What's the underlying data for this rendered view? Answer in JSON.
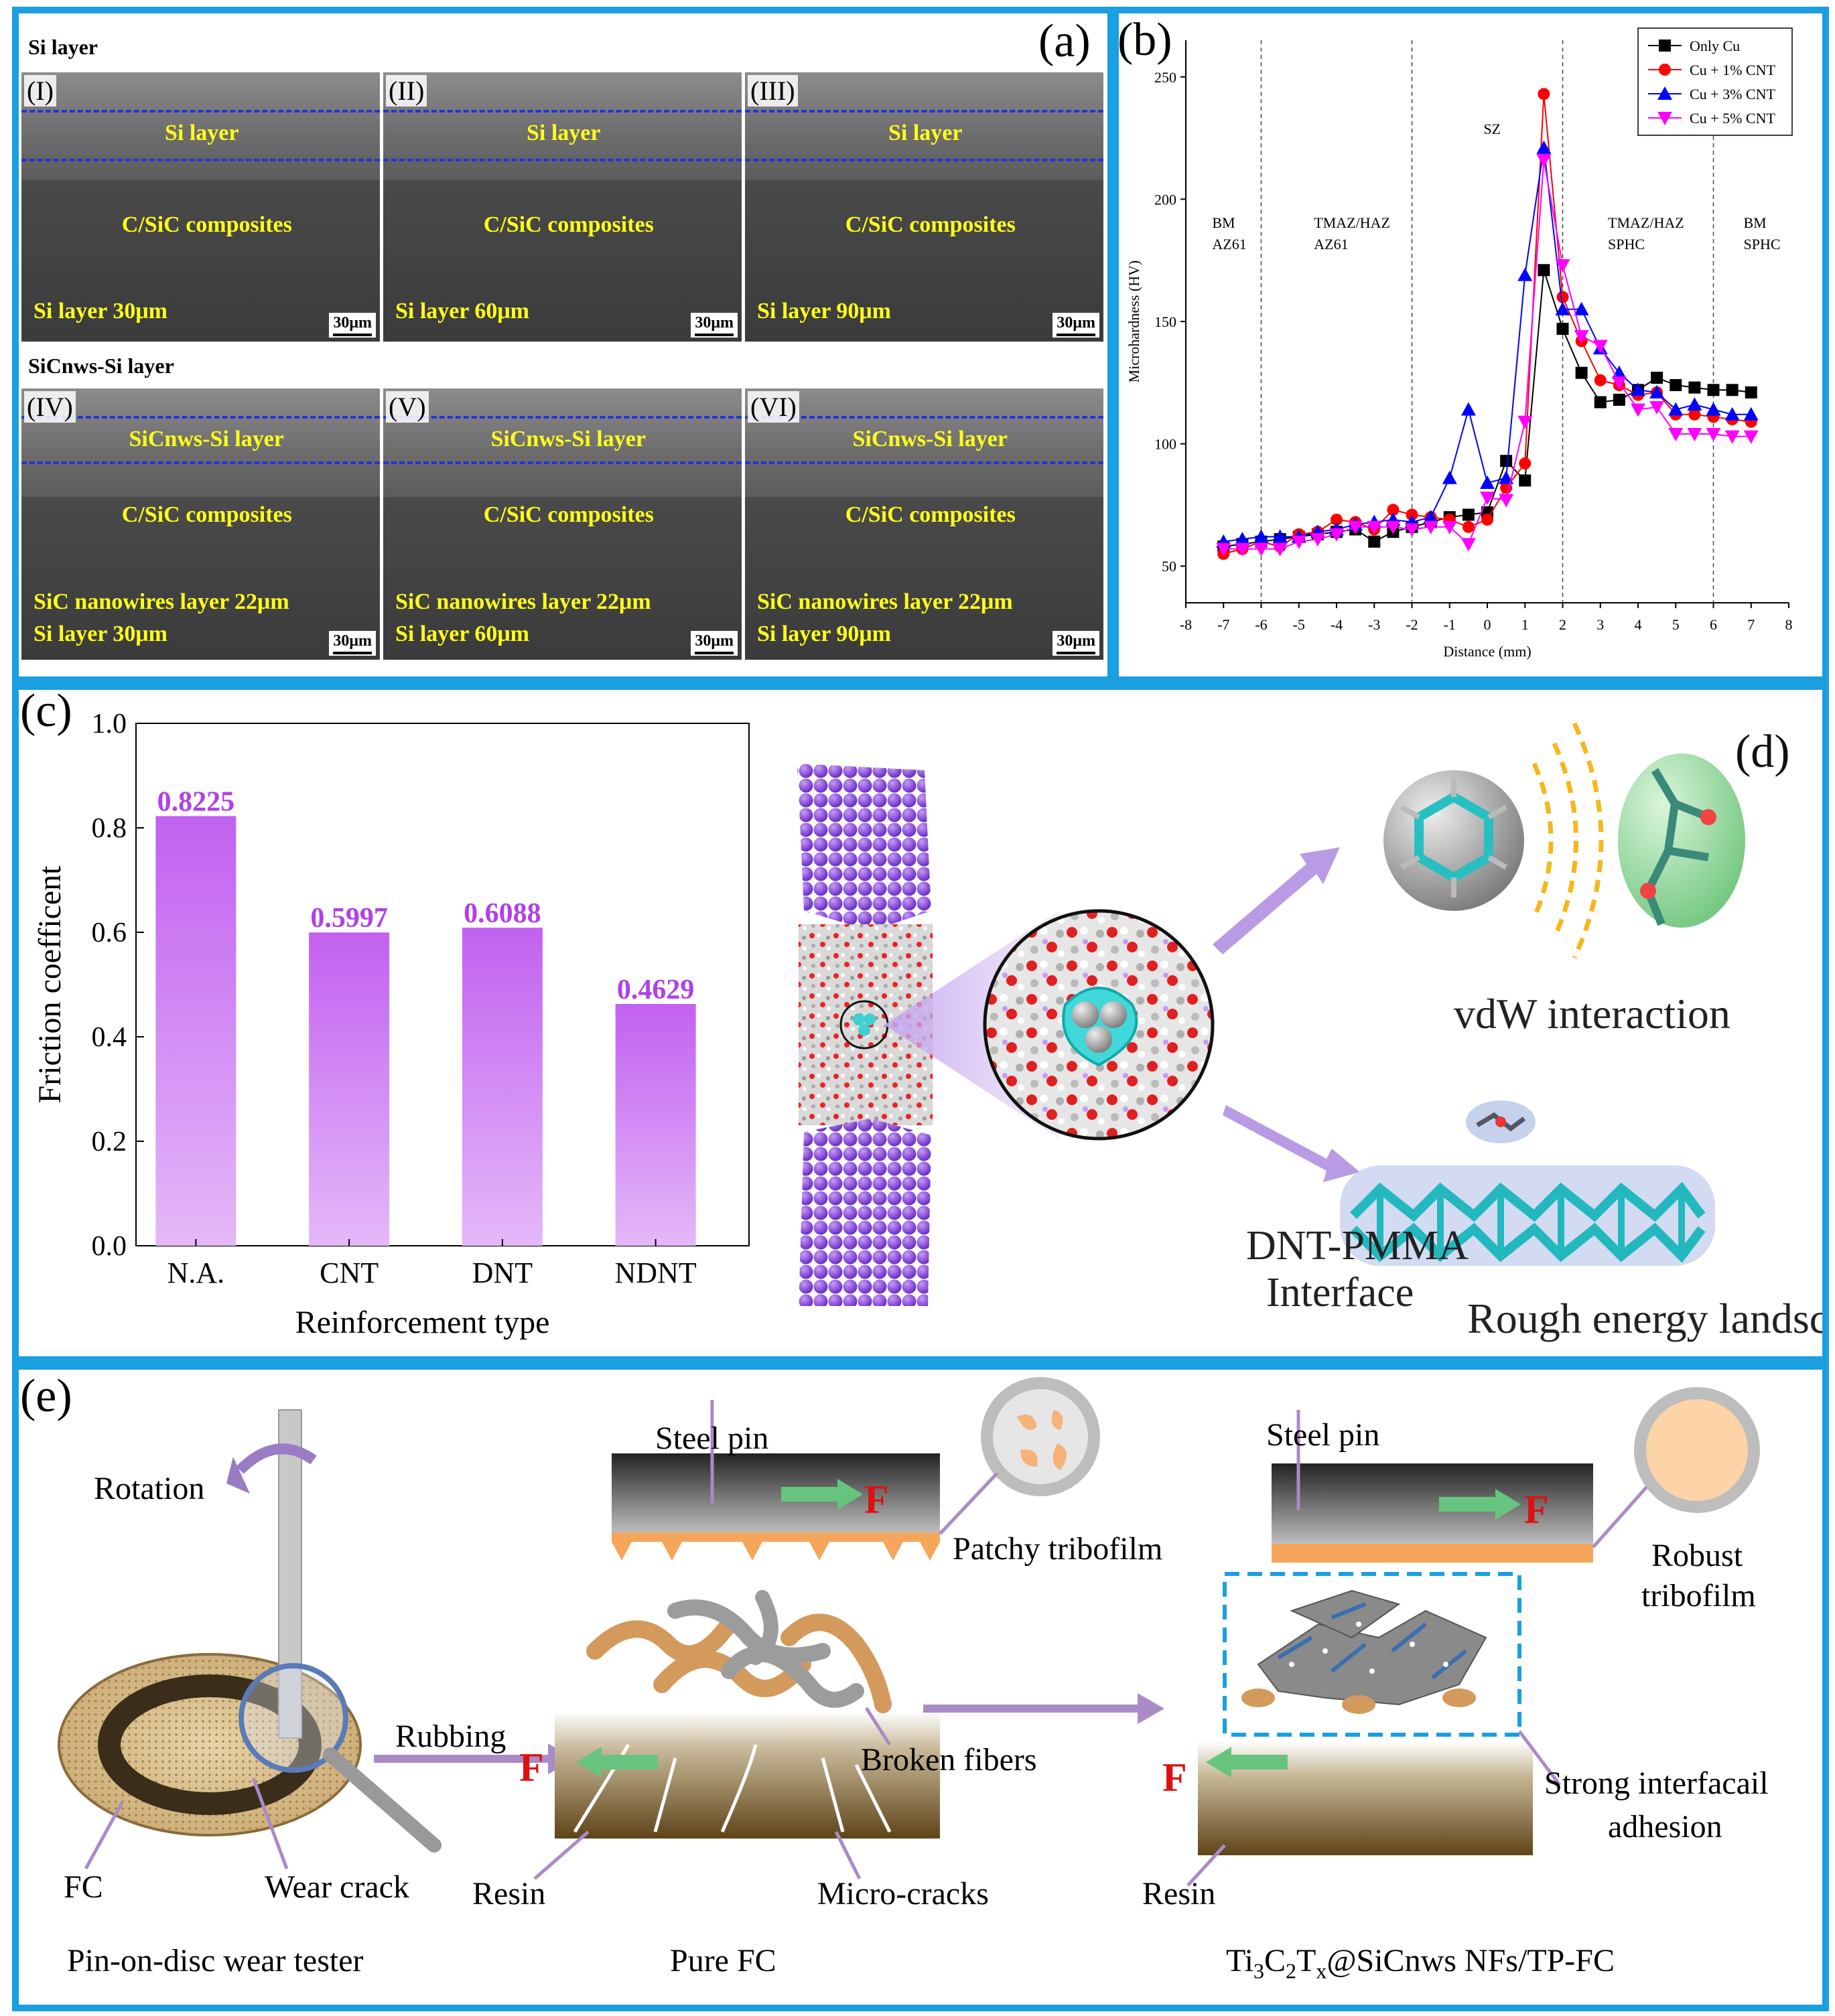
{
  "panel_a": {
    "tag": "(a)",
    "row1_header": "Si layer",
    "row2_header": "SiCnws-Si layer",
    "scale": "30μm",
    "images": [
      {
        "roman": "(I)",
        "layer": "Si layer",
        "composite": "C/SiC composites",
        "caption1": "Si layer 30μm",
        "caption2": ""
      },
      {
        "roman": "(II)",
        "layer": "Si  layer",
        "composite": "C/SiC composites",
        "caption1": "Si layer 60μm",
        "caption2": ""
      },
      {
        "roman": "(III)",
        "layer": "Si  layer",
        "composite": "C/SiC composites",
        "caption1": "Si layer 90μm",
        "caption2": ""
      },
      {
        "roman": "(IV)",
        "layer": "SiCnws-Si  layer",
        "composite": "C/SiC composites",
        "caption1": "SiC nanowires layer 22μm",
        "caption2": "Si layer 30μm"
      },
      {
        "roman": "(V)",
        "layer": "SiCnws-Si  layer",
        "composite": "C/SiC composites",
        "caption1": "SiC nanowires layer 22μm",
        "caption2": "Si layer 60μm"
      },
      {
        "roman": "(VI)",
        "layer": "SiCnws-Si  layer",
        "composite": "C/SiC composites",
        "caption1": "SiC nanowires layer 22μm",
        "caption2": "Si layer 90μm"
      }
    ]
  },
  "panel_b": {
    "tag": "(b)",
    "region_labels": [
      {
        "l1": "BM",
        "l2": "AZ61"
      },
      {
        "l1": "TMAZ/HAZ",
        "l2": "AZ61"
      },
      {
        "l1": "SZ",
        "l2": ""
      },
      {
        "l1": "TMAZ/HAZ",
        "l2": "SPHC"
      },
      {
        "l1": "BM",
        "l2": "SPHC"
      }
    ]
  },
  "panel_c_tag": "(c)",
  "panel_d": {
    "tag": "(d)",
    "interface_l1": "DNT-PMMA",
    "interface_l2": "Interface",
    "vdw": "vdW interaction",
    "rough": "Rough energy landscape"
  },
  "panel_e": {
    "tag": "(e)",
    "rotation": "Rotation",
    "fc": "FC",
    "wear_crack": "Wear crack",
    "rubbing": "Rubbing",
    "steel_pin_1": "Steel pin",
    "patchy": "Patchy tribofilm",
    "force": "F",
    "broken_fibers": "Broken fibers",
    "resin_1": "Resin",
    "micro_cracks": "Micro-cracks",
    "steel_pin_2": "Steel pin",
    "robust_l1": "Robust",
    "robust_l2": "tribofilm",
    "strong_l1": "Strong interfacail",
    "strong_l2": "adhesion",
    "resin_2": "Resin",
    "caption_1": "Pin-on-disc wear tester",
    "caption_2": "Pure FC",
    "caption_3_a": "Ti",
    "caption_3_s1": "3",
    "caption_3_b": "C",
    "caption_3_s2": "2",
    "caption_3_c": "T",
    "caption_3_s3": "x",
    "caption_3_d": "@SiCnws NFs/TP-FC"
  },
  "colors": {
    "frame": "#1a9fe0",
    "bar": "#cc77ee",
    "bar_label": "#b040e8",
    "arrow": "#a98bc6",
    "copper": "#f5a65a"
  },
  "chart_data": [
    {
      "type": "line",
      "panel": "(b)",
      "xlabel": "Distance (mm)",
      "ylabel": "Microhardness (HV)",
      "xlim": [
        -8,
        8
      ],
      "ylim": [
        35,
        265
      ],
      "xticks": [
        -8,
        -7,
        -6,
        -5,
        -4,
        -3,
        -2,
        -1,
        0,
        1,
        2,
        3,
        4,
        5,
        6,
        7,
        8
      ],
      "yticks": [
        50,
        100,
        150,
        200,
        250
      ],
      "vlines": [
        -6,
        -2,
        2,
        6
      ],
      "legend_position": "top-right",
      "x": [
        -7,
        -6.5,
        -6,
        -5.5,
        -5,
        -4.5,
        -4,
        -3.5,
        -3,
        -2.5,
        -2,
        -1.5,
        -1,
        -0.5,
        0,
        0.5,
        1,
        1.5,
        2,
        2.5,
        3,
        3.5,
        4,
        4.5,
        5,
        5.5,
        6,
        6.5,
        7
      ],
      "series": [
        {
          "name": "Only Cu",
          "color": "#000000",
          "marker": "square",
          "values": [
            58,
            59,
            60,
            61,
            62,
            63,
            64,
            65,
            60,
            64,
            66,
            68,
            70,
            71,
            72,
            93,
            85,
            171,
            147,
            129,
            117,
            118,
            122,
            127,
            124,
            123,
            122,
            122,
            121
          ]
        },
        {
          "name": "Cu + 1% CNT",
          "color": "#ff0000",
          "marker": "circle",
          "values": [
            55,
            57,
            60,
            58,
            63,
            64,
            69,
            68,
            65,
            73,
            71,
            70,
            69,
            66,
            69,
            82,
            92,
            243,
            160,
            142,
            126,
            124,
            120,
            121,
            112,
            112,
            111,
            110,
            109
          ]
        },
        {
          "name": "Cu + 3% CNT",
          "color": "#0000ff",
          "marker": "triangle-up",
          "values": [
            60,
            61,
            62,
            62,
            62,
            64,
            65,
            67,
            68,
            69,
            68,
            70,
            86,
            114,
            84,
            86,
            169,
            221,
            155,
            155,
            139,
            129,
            122,
            121,
            114,
            116,
            114,
            112,
            112
          ]
        },
        {
          "name": "Cu + 5% CNT",
          "color": "#ff00ff",
          "marker": "triangle-down",
          "values": [
            57,
            57,
            57,
            57,
            60,
            61,
            63,
            66,
            66,
            66,
            65,
            66,
            66,
            59,
            78,
            77,
            109,
            216,
            173,
            144,
            140,
            125,
            114,
            115,
            104,
            104,
            104,
            103,
            103
          ]
        }
      ]
    },
    {
      "type": "bar",
      "panel": "(c)",
      "categories": [
        "N.A.",
        "CNT",
        "DNT",
        "NDNT"
      ],
      "values": [
        0.8225,
        0.5997,
        0.6088,
        0.4629
      ],
      "value_labels": [
        "0.8225",
        "0.5997",
        "0.6088",
        "0.4629"
      ],
      "xlabel": "Reinforcement type",
      "ylabel": "Friction coefficent",
      "ylim": [
        0,
        1.0
      ],
      "yticks": [
        0.0,
        0.2,
        0.4,
        0.6,
        0.8,
        1.0
      ]
    }
  ]
}
